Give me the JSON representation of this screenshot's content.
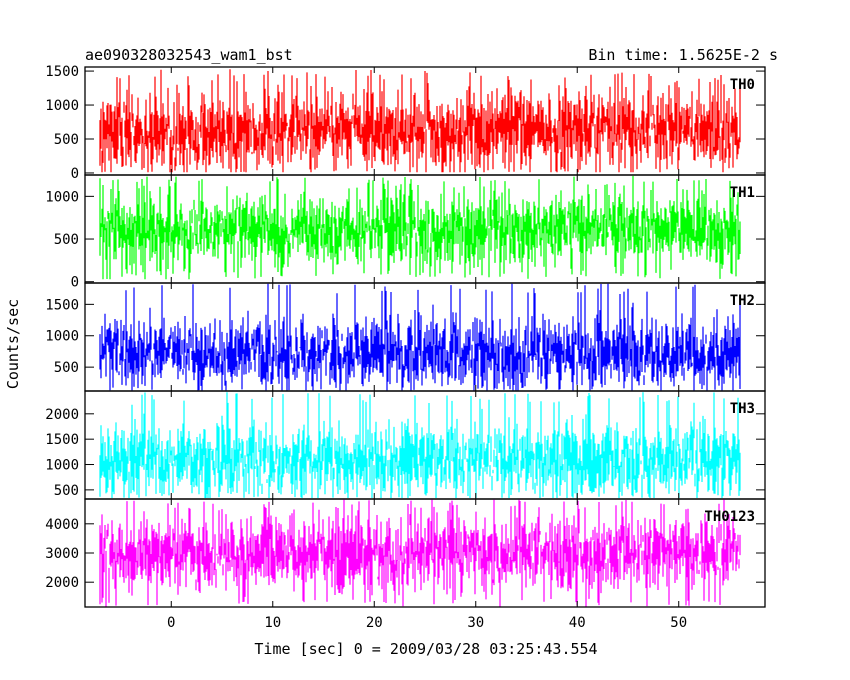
{
  "chart_data": {
    "type": "line",
    "title": "ae090328032543_wam1_bst",
    "subtitle": "Bin time: 1.5625E-2 s",
    "xlabel": "Time [sec] 0 = 2009/03/28 03:25:43.554",
    "ylabel": "Counts/sec",
    "xlim": [
      -8.5,
      58.5
    ],
    "x_ticks": [
      0,
      10,
      20,
      30,
      40,
      50
    ],
    "x_tick_labels": [
      "0",
      "10",
      "20",
      "30",
      "40",
      "50"
    ],
    "data_x_range": [
      -7.0,
      56.0
    ],
    "grid": false,
    "panels": [
      {
        "name": "TH0",
        "color": "#ff0000",
        "ylim": [
          -30,
          1560
        ],
        "y_ticks": [
          0,
          500,
          1000,
          1500
        ],
        "y_tick_labels": [
          "0",
          "500",
          "1000",
          "1500"
        ],
        "mean": 620,
        "sigma": 280,
        "min": 10,
        "max": 1530
      },
      {
        "name": "TH1",
        "color": "#00ff00",
        "ylim": [
          -15,
          1250
        ],
        "y_ticks": [
          0,
          500,
          1000
        ],
        "y_tick_labels": [
          "0",
          "500",
          "1000"
        ],
        "mean": 610,
        "sigma": 210,
        "min": 30,
        "max": 1240
      },
      {
        "name": "TH2",
        "color": "#0000ff",
        "ylim": [
          120,
          1840
        ],
        "y_ticks": [
          500,
          1000,
          1500
        ],
        "y_tick_labels": [
          "500",
          "1000",
          "1500"
        ],
        "mean": 720,
        "sigma": 280,
        "min": 130,
        "max": 1830
      },
      {
        "name": "TH3",
        "color": "#00ffff",
        "ylim": [
          320,
          2450
        ],
        "y_ticks": [
          500,
          1000,
          1500,
          2000
        ],
        "y_tick_labels": [
          "500",
          "1000",
          "1500",
          "2000"
        ],
        "mean": 1080,
        "sigma": 360,
        "min": 340,
        "max": 2430
      },
      {
        "name": "TH0123",
        "color": "#ff00ff",
        "ylim": [
          1150,
          4850
        ],
        "y_ticks": [
          2000,
          3000,
          4000
        ],
        "y_tick_labels": [
          "2000",
          "3000",
          "4000"
        ],
        "mean": 3020,
        "sigma": 620,
        "min": 1160,
        "max": 4840
      }
    ]
  }
}
